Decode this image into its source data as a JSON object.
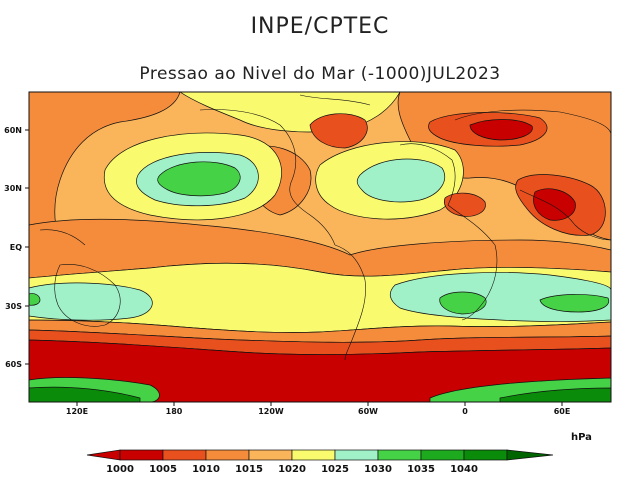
{
  "header": {
    "institution": "INPE/CPTEC",
    "subtitle": "Pressao ao Nivel do Mar (-1000)JUL2023"
  },
  "map": {
    "lat_labels": [
      "60N",
      "30N",
      "EQ",
      "30S",
      "60S"
    ],
    "lon_labels": [
      "120E",
      "180",
      "120W",
      "60W",
      "0",
      "60E"
    ]
  },
  "colorbar": {
    "unit": "hPa",
    "levels": [
      "1000",
      "1005",
      "1010",
      "1015",
      "1020",
      "1025",
      "1030",
      "1035",
      "1040"
    ],
    "colors": [
      "#c80000",
      "#e8501e",
      "#f58c3c",
      "#fab45a",
      "#fafa6e",
      "#a0f0c8",
      "#46d246",
      "#1eaa1e",
      "#0a8c0a",
      "#006400"
    ]
  }
}
